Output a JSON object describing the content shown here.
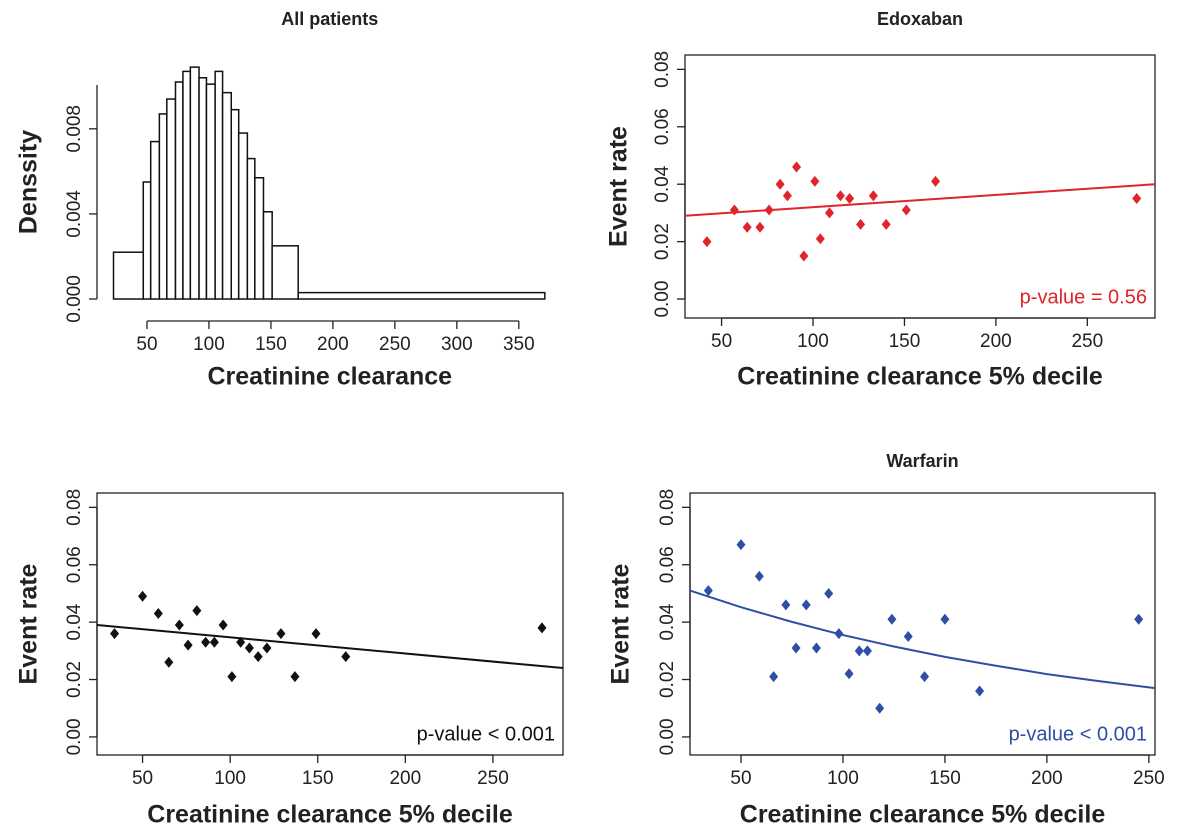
{
  "chart_data": [
    {
      "type": "histogram",
      "title": "All patients",
      "x_label": "Creatinine clearance",
      "y_label": "Denssity",
      "bins": [
        23,
        47,
        53,
        60,
        66,
        73,
        79,
        85,
        92,
        98,
        105,
        111,
        118,
        124,
        131,
        137,
        144,
        151,
        172,
        371
      ],
      "values": [
        0.0022,
        0.0055,
        0.0074,
        0.0087,
        0.0094,
        0.0102,
        0.0107,
        0.0109,
        0.0104,
        0.0101,
        0.0107,
        0.0097,
        0.0089,
        0.0078,
        0.0066,
        0.0057,
        0.0041,
        0.0025,
        0.0003
      ],
      "color": "#ffffff",
      "xlim": [
        15,
        380
      ],
      "ylim": [
        0,
        0.011
      ],
      "xticks": [
        50,
        100,
        150,
        200,
        250,
        300,
        350
      ],
      "yticks": [
        {
          "value": 0,
          "label": "0.000"
        },
        {
          "value": 0.004,
          "label": "0.004"
        },
        {
          "value": 0.008,
          "label": "0.008"
        }
      ]
    },
    {
      "type": "scatter",
      "title": "Edoxaban",
      "x_label": "Creatinine clearance 5% decile",
      "y_label": "Event rate",
      "x": [
        42,
        57,
        64,
        71,
        76,
        82,
        86,
        91,
        95,
        101,
        104,
        109,
        115,
        120,
        126,
        133,
        140,
        151,
        167,
        277
      ],
      "values": [
        0.02,
        0.031,
        0.025,
        0.025,
        0.031,
        0.04,
        0.036,
        0.046,
        0.015,
        0.041,
        0.021,
        0.03,
        0.036,
        0.035,
        0.026,
        0.036,
        0.026,
        0.031,
        0.041,
        0.035
      ],
      "color": "#e0242b",
      "fit": {
        "x": [
          30,
          287
        ],
        "values": [
          0.029,
          0.04
        ]
      },
      "annotation": "p-value = 0.56",
      "xlim": [
        30,
        287
      ],
      "ylim": [
        -0.0066,
        0.085
      ],
      "xticks": [
        50,
        100,
        150,
        200,
        250
      ],
      "yticks": [
        {
          "value": 0,
          "label": "0.00"
        },
        {
          "value": 0.02,
          "label": "0.02"
        },
        {
          "value": 0.04,
          "label": "0.04"
        },
        {
          "value": 0.06,
          "label": "0.06"
        },
        {
          "value": 0.08,
          "label": "0.08"
        }
      ]
    },
    {
      "type": "scatter",
      "x_label": "Creatinine clearance 5% decile",
      "y_label": "Event rate",
      "x": [
        34,
        50,
        59,
        65,
        71,
        76,
        81,
        86,
        91,
        96,
        101,
        106,
        111,
        116,
        121,
        129,
        137,
        149,
        166,
        278
      ],
      "values": [
        0.036,
        0.049,
        0.043,
        0.026,
        0.039,
        0.032,
        0.044,
        0.033,
        0.033,
        0.039,
        0.021,
        0.033,
        0.031,
        0.028,
        0.031,
        0.036,
        0.021,
        0.036,
        0.028,
        0.038
      ],
      "color": "#111111",
      "fit": {
        "x": [
          24,
          290
        ],
        "values": [
          0.039,
          0.024
        ]
      },
      "annotation": "p-value < 0.001",
      "xlim": [
        24,
        290
      ],
      "ylim": [
        -0.0063,
        0.085
      ],
      "xticks": [
        50,
        100,
        150,
        200,
        250
      ],
      "yticks": [
        {
          "value": 0,
          "label": "0.00"
        },
        {
          "value": 0.02,
          "label": "0.02"
        },
        {
          "value": 0.04,
          "label": "0.04"
        },
        {
          "value": 0.06,
          "label": "0.06"
        },
        {
          "value": 0.08,
          "label": "0.08"
        }
      ]
    },
    {
      "type": "scatter",
      "title": "Warfarin",
      "x_label": "Creatinine clearance 5% decile",
      "y_label": "Event rate",
      "x": [
        34,
        50,
        59,
        66,
        72,
        77,
        82,
        87,
        93,
        98,
        103,
        108,
        112,
        118,
        124,
        132,
        140,
        150,
        167,
        245
      ],
      "values": [
        0.051,
        0.067,
        0.056,
        0.021,
        0.046,
        0.031,
        0.046,
        0.031,
        0.05,
        0.036,
        0.022,
        0.03,
        0.03,
        0.01,
        0.041,
        0.035,
        0.021,
        0.041,
        0.016,
        0.041
      ],
      "color": "#2e4fa3",
      "fit": {
        "x": [
          25,
          50,
          75,
          100,
          125,
          150,
          175,
          200,
          225,
          253
        ],
        "values": [
          0.051,
          0.0452,
          0.0401,
          0.0355,
          0.0315,
          0.0279,
          0.0248,
          0.0219,
          0.0195,
          0.017
        ]
      },
      "annotation": "p-value < 0.001",
      "xlim": [
        25,
        253
      ],
      "ylim": [
        -0.0063,
        0.085
      ],
      "xticks": [
        50,
        100,
        150,
        200,
        250
      ],
      "yticks": [
        {
          "value": 0,
          "label": "0.00"
        },
        {
          "value": 0.02,
          "label": "0.02"
        },
        {
          "value": 0.04,
          "label": "0.04"
        },
        {
          "value": 0.06,
          "label": "0.06"
        },
        {
          "value": 0.08,
          "label": "0.08"
        }
      ]
    }
  ]
}
